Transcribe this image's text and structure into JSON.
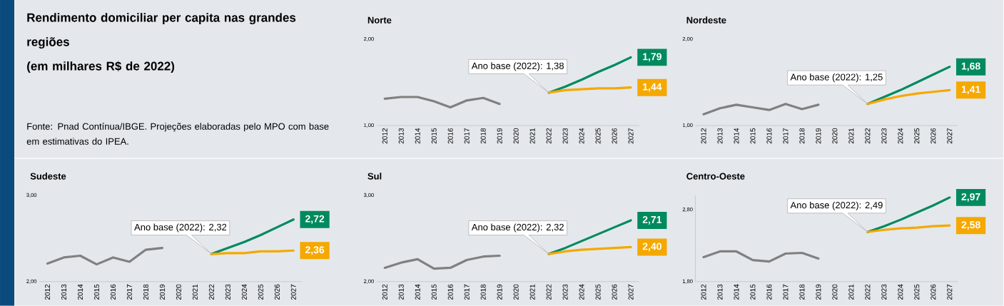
{
  "chart_data": [
    {
      "type": "other",
      "title": "Rendimento domiciliar per capita nas grandes regiões\n(em milhares R$ de 2022)",
      "annotations": [
        "Fonte: Pnad Contínua/IBGE. Projeções elaboradas pelo MPO com base em estimativas do IPEA."
      ]
    },
    {
      "type": "line",
      "title": "Norte",
      "categories": [
        "2012",
        "2013",
        "2014",
        "2015",
        "2016",
        "2017",
        "2018",
        "2019",
        "2020",
        "2021",
        "2022",
        "2023",
        "2024",
        "2025",
        "2026",
        "2027"
      ],
      "series": [
        {
          "color": "#808080",
          "values": [
            1.31,
            1.33,
            1.33,
            1.28,
            1.21,
            1.29,
            1.32,
            1.25,
            null,
            null,
            null,
            null,
            null,
            null,
            null,
            null
          ]
        },
        {
          "color": "#008a5e",
          "values": [
            null,
            null,
            null,
            null,
            null,
            null,
            null,
            null,
            null,
            null,
            1.38,
            1.45,
            1.53,
            1.62,
            1.7,
            1.79
          ],
          "value_labels": [
            null,
            null,
            null,
            null,
            null,
            null,
            null,
            null,
            null,
            null,
            null,
            null,
            null,
            null,
            null,
            "1,79"
          ]
        },
        {
          "color": "#f5a800",
          "values": [
            null,
            null,
            null,
            null,
            null,
            null,
            null,
            null,
            null,
            null,
            1.38,
            1.41,
            1.42,
            1.43,
            1.43,
            1.44
          ],
          "value_labels": [
            null,
            null,
            null,
            null,
            null,
            null,
            null,
            null,
            null,
            null,
            null,
            null,
            null,
            null,
            null,
            "1,44"
          ]
        }
      ],
      "ylim": [
        1,
        2
      ],
      "yticks": [
        {
          "value": 1,
          "label": "1,00"
        },
        {
          "value": 2,
          "label": "2,00"
        }
      ],
      "annotations": [
        {
          "text": "Ano base (2022): 1,38",
          "x": "2022",
          "y": 1.38
        }
      ]
    },
    {
      "type": "line",
      "title": "Nordeste",
      "categories": [
        "2012",
        "2013",
        "2014",
        "2015",
        "2016",
        "2017",
        "2018",
        "2019",
        "2020",
        "2021",
        "2022",
        "2023",
        "2024",
        "2025",
        "2026",
        "2027"
      ],
      "series": [
        {
          "color": "#808080",
          "values": [
            1.13,
            1.2,
            1.24,
            1.21,
            1.18,
            1.25,
            1.19,
            1.24,
            null,
            null,
            null,
            null,
            null,
            null,
            null,
            null
          ]
        },
        {
          "color": "#008a5e",
          "values": [
            null,
            null,
            null,
            null,
            null,
            null,
            null,
            null,
            null,
            null,
            1.25,
            1.33,
            1.41,
            1.5,
            1.59,
            1.68
          ],
          "value_labels": [
            null,
            null,
            null,
            null,
            null,
            null,
            null,
            null,
            null,
            null,
            null,
            null,
            null,
            null,
            null,
            "1,68"
          ]
        },
        {
          "color": "#f5a800",
          "values": [
            null,
            null,
            null,
            null,
            null,
            null,
            null,
            null,
            null,
            null,
            1.25,
            1.3,
            1.34,
            1.37,
            1.39,
            1.41
          ],
          "value_labels": [
            null,
            null,
            null,
            null,
            null,
            null,
            null,
            null,
            null,
            null,
            null,
            null,
            null,
            null,
            null,
            "1,41"
          ]
        }
      ],
      "ylim": [
        1,
        2
      ],
      "yticks": [
        {
          "value": 1,
          "label": "1,00"
        },
        {
          "value": 2,
          "label": "2,00"
        }
      ],
      "annotations": [
        {
          "text": "Ano base (2022): 1,25",
          "x": "2022",
          "y": 1.25
        }
      ]
    },
    {
      "type": "line",
      "title": "Sudeste",
      "categories": [
        "2012",
        "2013",
        "2014",
        "2015",
        "2016",
        "2017",
        "2018",
        "2019",
        "2020",
        "2021",
        "2022",
        "2023",
        "2024",
        "2025",
        "2026",
        "2027"
      ],
      "series": [
        {
          "color": "#808080",
          "values": [
            2.21,
            2.28,
            2.3,
            2.2,
            2.28,
            2.23,
            2.37,
            2.39,
            null,
            null,
            null,
            null,
            null,
            null,
            null,
            null
          ]
        },
        {
          "color": "#008a5e",
          "values": [
            null,
            null,
            null,
            null,
            null,
            null,
            null,
            null,
            null,
            null,
            2.32,
            2.39,
            2.46,
            2.54,
            2.63,
            2.72
          ],
          "value_labels": [
            null,
            null,
            null,
            null,
            null,
            null,
            null,
            null,
            null,
            null,
            null,
            null,
            null,
            null,
            null,
            "2,72"
          ]
        },
        {
          "color": "#f5a800",
          "values": [
            null,
            null,
            null,
            null,
            null,
            null,
            null,
            null,
            null,
            null,
            2.32,
            2.33,
            2.33,
            2.35,
            2.35,
            2.36
          ],
          "value_labels": [
            null,
            null,
            null,
            null,
            null,
            null,
            null,
            null,
            null,
            null,
            null,
            null,
            null,
            null,
            null,
            "2,36"
          ]
        }
      ],
      "ylim": [
        2,
        3
      ],
      "yticks": [
        {
          "value": 2,
          "label": "2,00"
        },
        {
          "value": 3,
          "label": "3,00"
        }
      ],
      "annotations": [
        {
          "text": "Ano base (2022): 2,32",
          "x": "2022",
          "y": 2.32
        }
      ]
    },
    {
      "type": "line",
      "title": "Sul",
      "categories": [
        "2012",
        "2013",
        "2014",
        "2015",
        "2016",
        "2017",
        "2018",
        "2019",
        "2020",
        "2021",
        "2022",
        "2023",
        "2024",
        "2025",
        "2026",
        "2027"
      ],
      "series": [
        {
          "color": "#808080",
          "values": [
            2.16,
            2.22,
            2.26,
            2.15,
            2.16,
            2.25,
            2.29,
            2.3,
            null,
            null,
            null,
            null,
            null,
            null,
            null,
            null
          ]
        },
        {
          "color": "#008a5e",
          "values": [
            null,
            null,
            null,
            null,
            null,
            null,
            null,
            null,
            null,
            null,
            2.32,
            2.39,
            2.47,
            2.55,
            2.63,
            2.71
          ],
          "value_labels": [
            null,
            null,
            null,
            null,
            null,
            null,
            null,
            null,
            null,
            null,
            null,
            null,
            null,
            null,
            null,
            "2,71"
          ]
        },
        {
          "color": "#f5a800",
          "values": [
            null,
            null,
            null,
            null,
            null,
            null,
            null,
            null,
            null,
            null,
            2.32,
            2.35,
            2.37,
            2.38,
            2.39,
            2.4
          ],
          "value_labels": [
            null,
            null,
            null,
            null,
            null,
            null,
            null,
            null,
            null,
            null,
            null,
            null,
            null,
            null,
            null,
            "2,40"
          ]
        }
      ],
      "ylim": [
        2,
        3
      ],
      "yticks": [
        {
          "value": 2,
          "label": "2,00"
        },
        {
          "value": 3,
          "label": "3,00"
        }
      ],
      "annotations": [
        {
          "text": "Ano base (2022): 2,32",
          "x": "2022",
          "y": 2.32
        }
      ]
    },
    {
      "type": "line",
      "title": "Centro-Oeste",
      "categories": [
        "2012",
        "2013",
        "2014",
        "2015",
        "2016",
        "2017",
        "2018",
        "2019",
        "2020",
        "2021",
        "2022",
        "2023",
        "2024",
        "2025",
        "2026",
        "2027"
      ],
      "series": [
        {
          "color": "#808080",
          "values": [
            2.14,
            2.22,
            2.22,
            2.1,
            2.08,
            2.19,
            2.2,
            2.12,
            null,
            null,
            null,
            null,
            null,
            null,
            null,
            null
          ]
        },
        {
          "color": "#008a5e",
          "values": [
            null,
            null,
            null,
            null,
            null,
            null,
            null,
            null,
            null,
            null,
            2.49,
            2.57,
            2.66,
            2.76,
            2.86,
            2.97
          ],
          "value_labels": [
            null,
            null,
            null,
            null,
            null,
            null,
            null,
            null,
            null,
            null,
            null,
            null,
            null,
            null,
            null,
            "2,97"
          ]
        },
        {
          "color": "#f5a800",
          "values": [
            null,
            null,
            null,
            null,
            null,
            null,
            null,
            null,
            null,
            null,
            2.49,
            2.52,
            2.54,
            2.55,
            2.57,
            2.58
          ],
          "value_labels": [
            null,
            null,
            null,
            null,
            null,
            null,
            null,
            null,
            null,
            null,
            null,
            null,
            null,
            null,
            null,
            "2,58"
          ]
        }
      ],
      "ylim": [
        1.8,
        3.0
      ],
      "yticks": [
        {
          "value": 1.8,
          "label": "1,80"
        },
        {
          "value": 2.8,
          "label": "2,80"
        }
      ],
      "annotations": [
        {
          "text": "Ano base (2022): 2,49",
          "x": "2022",
          "y": 2.49
        }
      ]
    }
  ]
}
